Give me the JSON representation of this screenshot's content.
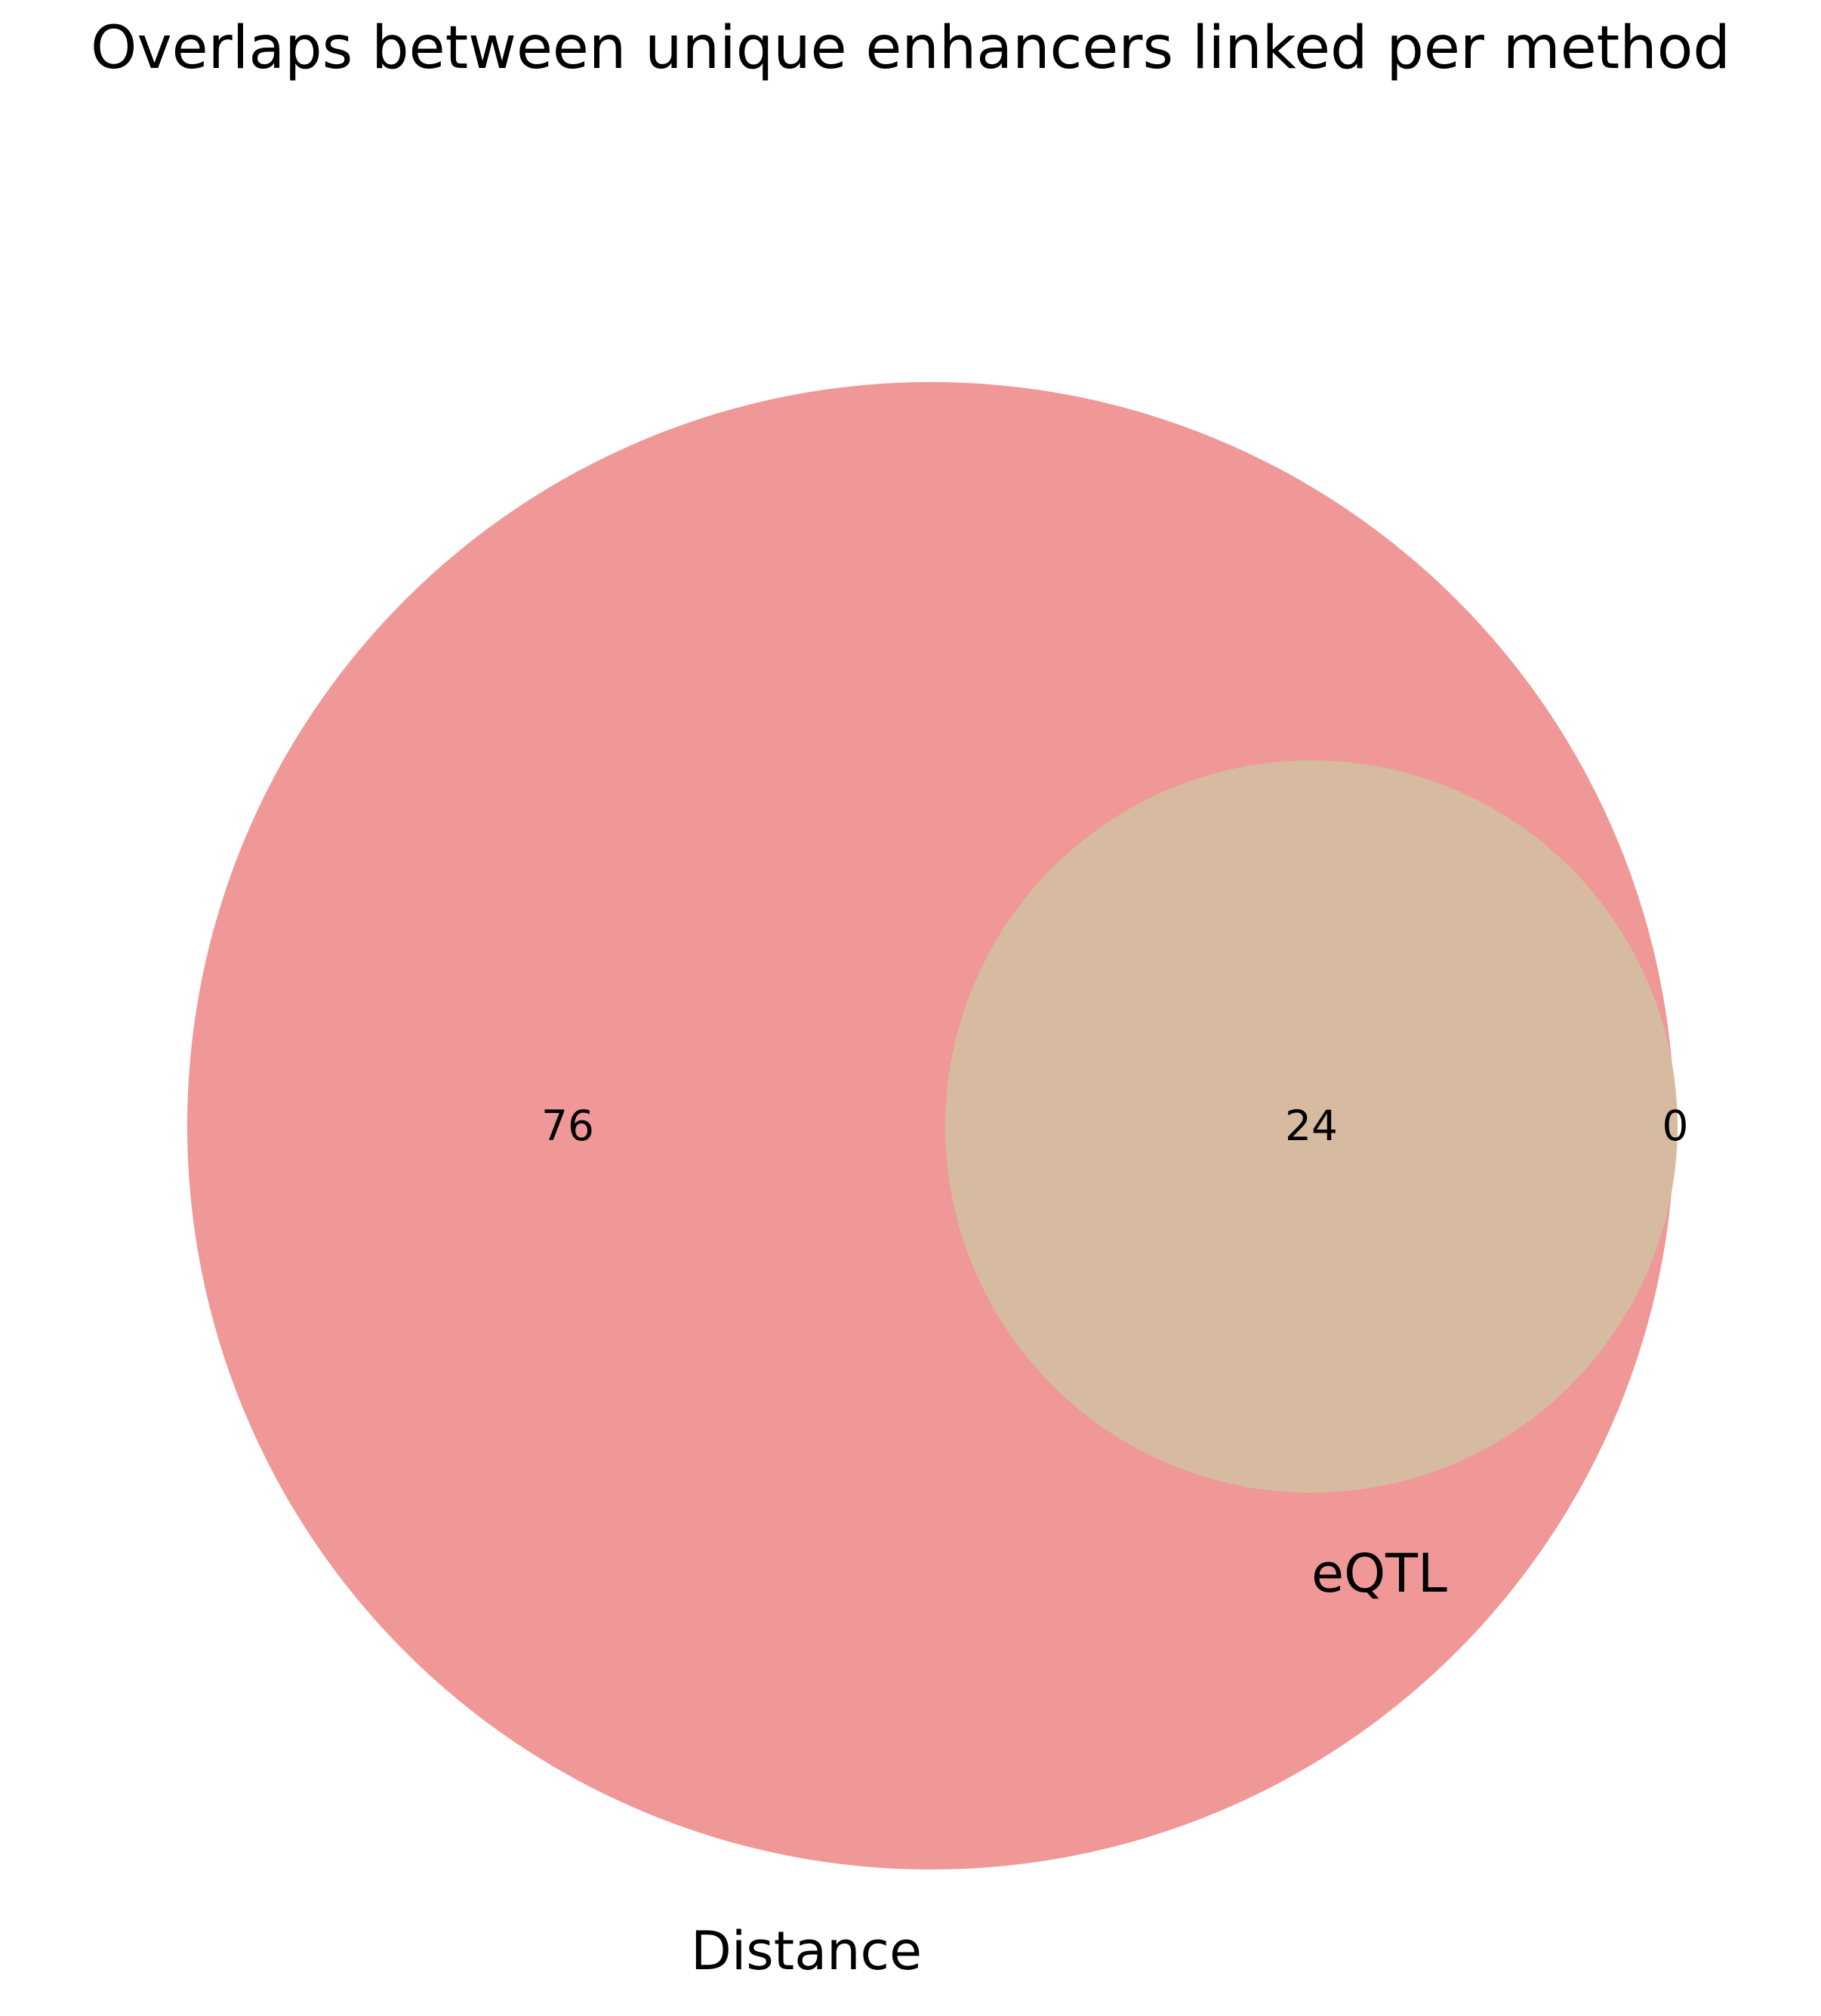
{
  "title": "Overlaps between unique enhancers linked per method",
  "chart_data": {
    "type": "venn",
    "sets": [
      {
        "name": "Distance",
        "color": "#f09797"
      },
      {
        "name": "eQTL",
        "color": "#d7bba0"
      }
    ],
    "regions": {
      "distance_only": "76",
      "both": "24",
      "eqtl_only": "0"
    },
    "colors": {
      "distance": "#f09797",
      "overlap": "#d7bba0",
      "background": "#ffffff"
    }
  }
}
